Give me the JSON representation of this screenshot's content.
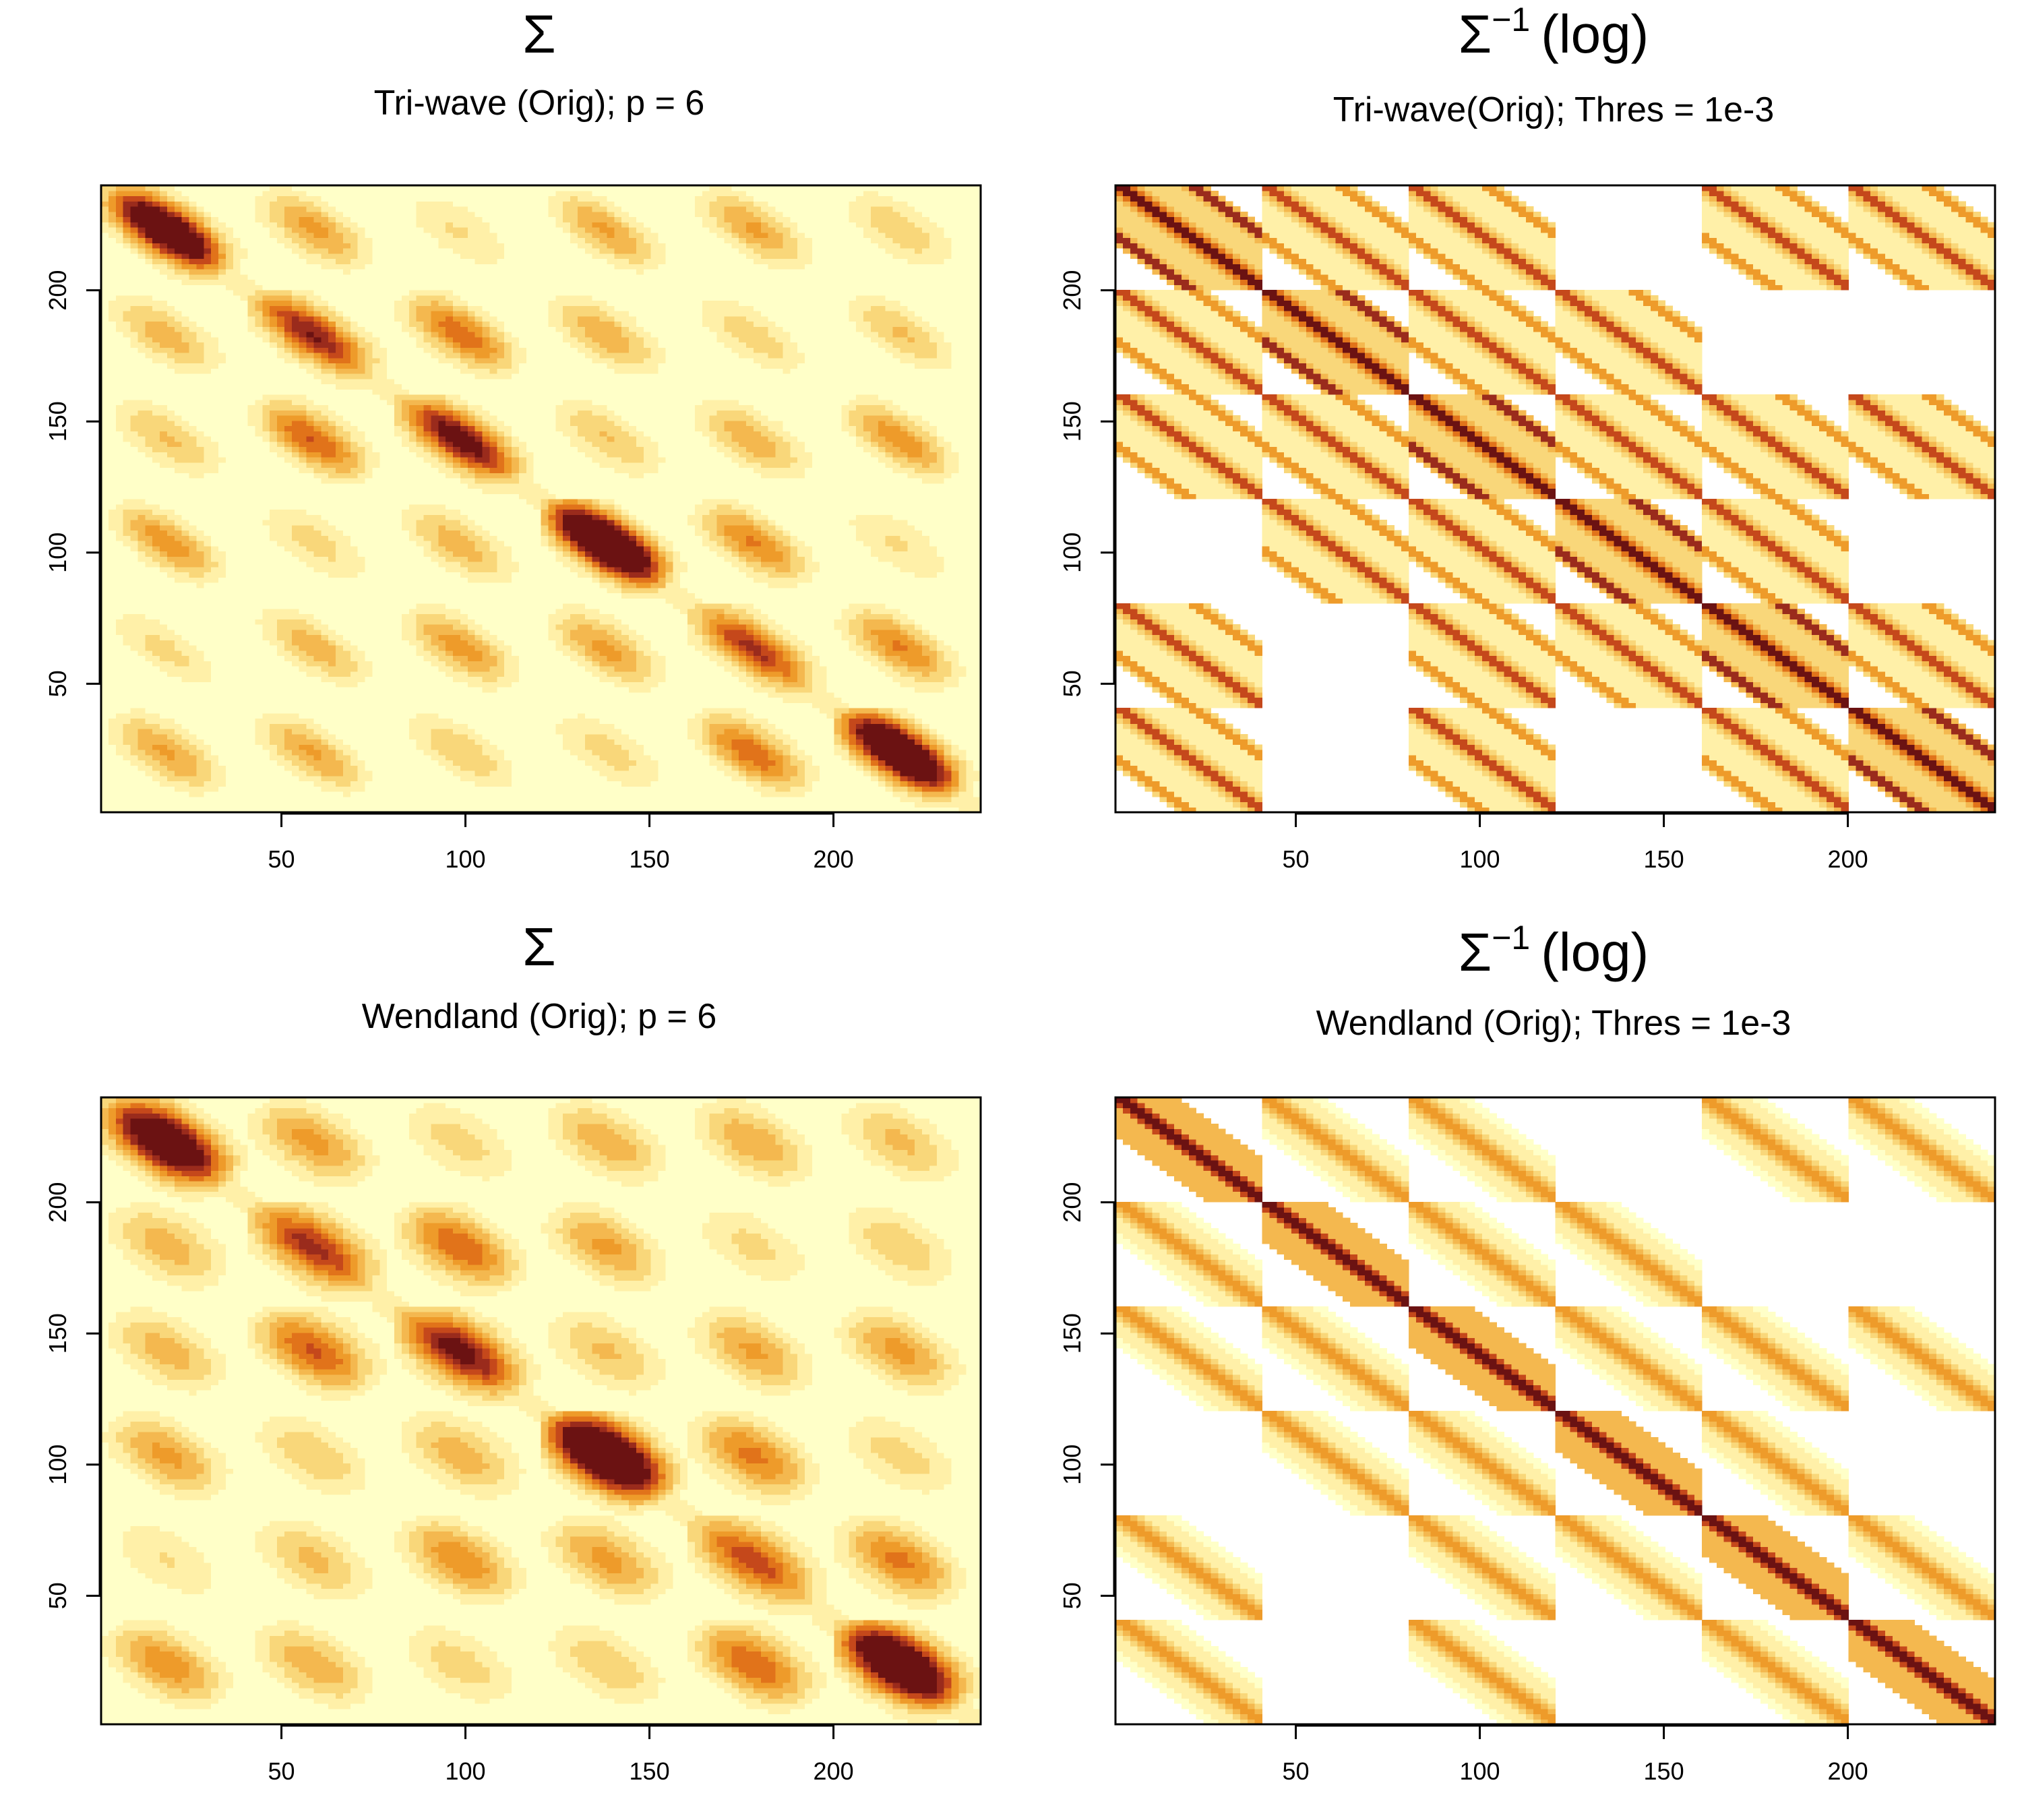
{
  "chart_data": [
    {
      "type": "heatmap",
      "title": "Σ",
      "subtitle": "Tri-wave (Orig); p = 6",
      "kind": "cov",
      "family": "triwave",
      "x_ticks": [
        50,
        100,
        150,
        200
      ],
      "y_ticks": [
        50,
        100,
        150,
        200
      ],
      "xlim": [
        1,
        240
      ],
      "ylim": [
        1,
        240
      ],
      "block_size": 40,
      "blocks": 6,
      "grid": false,
      "colors": [
        "#FFFFC8",
        "#FFF0A8",
        "#F9D77A",
        "#F4B84F",
        "#EE9B2A",
        "#E1731A",
        "#C5481B",
        "#9A2B1C",
        "#6B1212"
      ]
    },
    {
      "type": "heatmap",
      "title": "Σ",
      "title_sup": "−1",
      "title_suffix": "(log)",
      "subtitle": "Tri-wave(Orig); Thres = 1e-3",
      "kind": "prec",
      "family": "triwave",
      "x_ticks": [
        50,
        100,
        150,
        200
      ],
      "y_ticks": [
        50,
        100,
        150,
        200
      ],
      "xlim": [
        1,
        240
      ],
      "ylim": [
        1,
        240
      ],
      "block_size": 40,
      "blocks": 6,
      "grid": false,
      "colors": [
        "#FFFFC8",
        "#FFF0A8",
        "#F9D77A",
        "#F4B84F",
        "#EE9B2A",
        "#E1731A",
        "#C5481B",
        "#9A2B1C",
        "#6B1212"
      ]
    },
    {
      "type": "heatmap",
      "title": "Σ",
      "subtitle": "Wendland (Orig); p = 6",
      "kind": "cov",
      "family": "wendland",
      "x_ticks": [
        50,
        100,
        150,
        200
      ],
      "y_ticks": [
        50,
        100,
        150,
        200
      ],
      "xlim": [
        1,
        240
      ],
      "ylim": [
        1,
        240
      ],
      "block_size": 40,
      "blocks": 6,
      "grid": false,
      "colors": [
        "#FFFFC8",
        "#FFF0A8",
        "#F9D77A",
        "#F4B84F",
        "#EE9B2A",
        "#E1731A",
        "#C5481B",
        "#9A2B1C",
        "#6B1212"
      ]
    },
    {
      "type": "heatmap",
      "title": "Σ",
      "title_sup": "−1",
      "title_suffix": "(log)",
      "subtitle": "Wendland (Orig); Thres = 1e-3",
      "kind": "prec",
      "family": "wendland",
      "x_ticks": [
        50,
        100,
        150,
        200
      ],
      "y_ticks": [
        50,
        100,
        150,
        200
      ],
      "xlim": [
        1,
        240
      ],
      "ylim": [
        1,
        240
      ],
      "block_size": 40,
      "blocks": 6,
      "grid": false,
      "colors": [
        "#FFFFC8",
        "#FFF0A8",
        "#F9D77A",
        "#F4B84F",
        "#EE9B2A",
        "#E1731A",
        "#C5481B",
        "#9A2B1C",
        "#6B1212"
      ]
    }
  ]
}
